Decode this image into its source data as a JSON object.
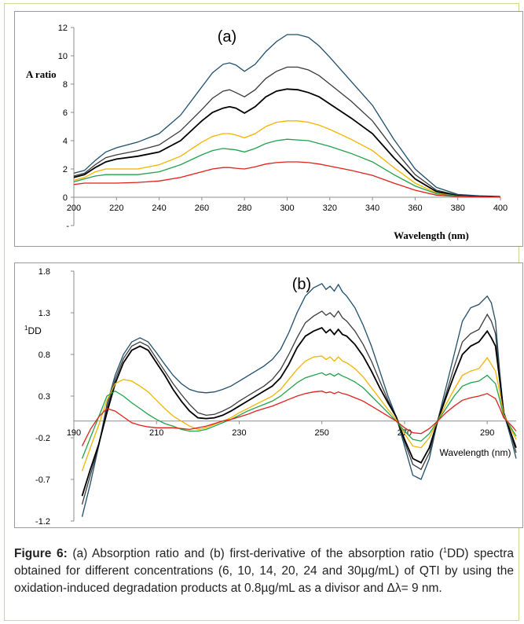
{
  "caption": {
    "label": "Figure 6:",
    "part1": " (a) Absorption ratio and (b) first-derivative of the absorption ratio (",
    "sup": "1",
    "part2": "DD) spectra obtained for different concentrations (6, 10, 14, 20, 24 and 30µg/mL) of QTI by using the oxidation-induced degradation products at 0.8µg/mL as a divisor and Δλ= 9 nm."
  },
  "series_colors": [
    "#1f4e6b",
    "#3b3b3b",
    "#000000",
    "#f2b300",
    "#21a24a",
    "#e0201b"
  ],
  "chart_data": [
    {
      "type": "line",
      "panel_label": "(a)",
      "ylabel": "A ratio",
      "xlabel": "Wavelength (nm)",
      "xlim": [
        200,
        400
      ],
      "ylim": [
        -2,
        12
      ],
      "xticks": [
        200,
        220,
        240,
        260,
        280,
        300,
        320,
        340,
        360,
        380,
        400
      ],
      "yticks": [
        0,
        2,
        4,
        6,
        8,
        10,
        12
      ],
      "ytick_labels": [
        "0",
        "2",
        "4",
        "6",
        "8",
        "10",
        "12"
      ],
      "x": [
        200,
        205,
        210,
        215,
        220,
        230,
        240,
        250,
        260,
        265,
        270,
        273,
        276,
        280,
        285,
        290,
        295,
        300,
        305,
        310,
        315,
        320,
        330,
        340,
        350,
        360,
        370,
        380,
        390,
        400
      ],
      "series": [
        {
          "values": [
            1.7,
            1.9,
            2.6,
            3.2,
            3.5,
            3.9,
            4.5,
            5.8,
            7.8,
            8.8,
            9.4,
            9.5,
            9.35,
            8.9,
            9.4,
            10.3,
            11.0,
            11.5,
            11.5,
            11.3,
            10.7,
            9.9,
            8.2,
            6.5,
            4.1,
            2.0,
            0.7,
            0.2,
            0.1,
            0.05
          ]
        },
        {
          "values": [
            1.5,
            1.7,
            2.3,
            2.8,
            3.0,
            3.3,
            3.7,
            4.7,
            6.2,
            7.0,
            7.5,
            7.6,
            7.4,
            7.1,
            7.6,
            8.4,
            8.9,
            9.2,
            9.2,
            9.0,
            8.6,
            8.0,
            6.8,
            5.4,
            3.4,
            1.6,
            0.5,
            0.15,
            0.05,
            0.02
          ]
        },
        {
          "values": [
            1.4,
            1.6,
            2.1,
            2.5,
            2.7,
            2.9,
            3.2,
            4.0,
            5.4,
            6.0,
            6.3,
            6.4,
            6.3,
            5.95,
            6.4,
            7.1,
            7.5,
            7.65,
            7.6,
            7.4,
            7.1,
            6.6,
            5.6,
            4.5,
            2.8,
            1.3,
            0.4,
            0.1,
            0.05,
            0.02
          ]
        },
        {
          "values": [
            1.2,
            1.4,
            1.8,
            2.0,
            2.0,
            2.0,
            2.3,
            2.9,
            3.9,
            4.3,
            4.5,
            4.5,
            4.4,
            4.2,
            4.5,
            5.0,
            5.3,
            5.4,
            5.4,
            5.3,
            5.1,
            4.8,
            4.1,
            3.3,
            2.1,
            1.0,
            0.3,
            0.08,
            0.03,
            0.01
          ]
        },
        {
          "values": [
            1.1,
            1.3,
            1.5,
            1.6,
            1.6,
            1.6,
            1.8,
            2.3,
            3.0,
            3.3,
            3.45,
            3.4,
            3.35,
            3.2,
            3.45,
            3.8,
            4.0,
            4.1,
            4.05,
            4.0,
            3.8,
            3.6,
            3.1,
            2.5,
            1.6,
            0.8,
            0.25,
            0.07,
            0.03,
            0.01
          ]
        },
        {
          "values": [
            0.9,
            1.0,
            1.0,
            1.0,
            1.0,
            1.05,
            1.15,
            1.4,
            1.8,
            2.0,
            2.1,
            2.1,
            2.05,
            2.0,
            2.15,
            2.35,
            2.45,
            2.5,
            2.5,
            2.45,
            2.35,
            2.2,
            1.9,
            1.55,
            1.0,
            0.5,
            0.15,
            0.05,
            0.02,
            0.01
          ]
        }
      ]
    },
    {
      "type": "line",
      "panel_label": "(b)",
      "ylabel_sup": "1",
      "ylabel": "DD",
      "xlabel": "Wavelength (nm)",
      "xlim": [
        190,
        297
      ],
      "ylim": [
        -1.2,
        1.8
      ],
      "xticks": [
        190,
        210,
        230,
        250,
        270,
        290
      ],
      "yticks": [
        1.8,
        1.3,
        0.8,
        0.3,
        -0.2,
        -0.7,
        -1.2
      ],
      "ytick_labels": [
        "1.8",
        "1.3",
        "0.8",
        "0.3",
        "-0.2",
        "-0.7",
        "-1.2"
      ],
      "x": [
        192,
        194,
        196,
        198,
        200,
        202,
        204,
        206,
        208,
        210,
        212,
        214,
        216,
        218,
        220,
        222,
        224,
        226,
        228,
        230,
        232,
        234,
        236,
        238,
        240,
        242,
        244,
        246,
        248,
        250,
        251,
        252,
        253,
        254,
        255,
        256,
        258,
        260,
        262,
        264,
        266,
        268,
        270,
        272,
        274,
        276,
        278,
        280,
        282,
        284,
        286,
        288,
        290,
        291,
        292,
        293,
        294,
        296,
        297
      ],
      "series": [
        {
          "values": [
            -1.15,
            -0.75,
            -0.3,
            0.2,
            0.55,
            0.8,
            0.95,
            1.0,
            0.95,
            0.82,
            0.68,
            0.55,
            0.45,
            0.38,
            0.35,
            0.34,
            0.35,
            0.38,
            0.42,
            0.48,
            0.54,
            0.6,
            0.66,
            0.74,
            0.86,
            1.06,
            1.3,
            1.5,
            1.6,
            1.65,
            1.58,
            1.62,
            1.56,
            1.64,
            1.55,
            1.5,
            1.36,
            1.15,
            0.9,
            0.6,
            0.3,
            0.05,
            -0.3,
            -0.65,
            -0.7,
            -0.45,
            0.0,
            0.4,
            0.8,
            1.2,
            1.36,
            1.4,
            1.5,
            1.42,
            1.2,
            0.6,
            0.1,
            -0.25,
            -0.45
          ]
        },
        {
          "values": [
            -1.0,
            -0.65,
            -0.3,
            0.15,
            0.5,
            0.75,
            0.9,
            0.95,
            0.9,
            0.75,
            0.6,
            0.45,
            0.32,
            0.2,
            0.1,
            0.07,
            0.08,
            0.12,
            0.17,
            0.24,
            0.3,
            0.36,
            0.42,
            0.5,
            0.62,
            0.8,
            1.0,
            1.18,
            1.26,
            1.32,
            1.27,
            1.3,
            1.25,
            1.32,
            1.24,
            1.2,
            1.08,
            0.92,
            0.72,
            0.48,
            0.25,
            0.05,
            -0.25,
            -0.52,
            -0.58,
            -0.38,
            0.0,
            0.32,
            0.65,
            0.95,
            1.05,
            1.1,
            1.28,
            1.2,
            1.05,
            0.55,
            0.1,
            -0.2,
            -0.38
          ]
        },
        {
          "values": [
            -0.9,
            -0.58,
            -0.28,
            0.1,
            0.45,
            0.7,
            0.85,
            0.9,
            0.85,
            0.7,
            0.55,
            0.38,
            0.24,
            0.12,
            0.04,
            0.03,
            0.04,
            0.07,
            0.12,
            0.18,
            0.24,
            0.3,
            0.36,
            0.42,
            0.52,
            0.68,
            0.88,
            1.02,
            1.08,
            1.12,
            1.06,
            1.1,
            1.04,
            1.1,
            1.04,
            1.02,
            0.92,
            0.78,
            0.6,
            0.4,
            0.22,
            0.05,
            -0.22,
            -0.45,
            -0.5,
            -0.32,
            0.0,
            0.28,
            0.55,
            0.8,
            0.9,
            0.95,
            1.08,
            1.0,
            0.9,
            0.5,
            0.1,
            -0.18,
            -0.32
          ]
        },
        {
          "values": [
            -0.6,
            -0.32,
            -0.05,
            0.25,
            0.45,
            0.5,
            0.48,
            0.42,
            0.35,
            0.25,
            0.15,
            0.06,
            0.0,
            -0.06,
            -0.1,
            -0.08,
            -0.04,
            0.0,
            0.04,
            0.1,
            0.15,
            0.2,
            0.25,
            0.3,
            0.38,
            0.5,
            0.62,
            0.72,
            0.77,
            0.78,
            0.74,
            0.77,
            0.72,
            0.77,
            0.72,
            0.7,
            0.63,
            0.53,
            0.4,
            0.27,
            0.14,
            0.02,
            -0.15,
            -0.3,
            -0.32,
            -0.2,
            0.0,
            0.2,
            0.38,
            0.55,
            0.6,
            0.63,
            0.76,
            0.68,
            0.6,
            0.35,
            0.08,
            -0.12,
            -0.22
          ]
        },
        {
          "values": [
            -0.45,
            -0.2,
            0.05,
            0.3,
            0.36,
            0.3,
            0.22,
            0.15,
            0.08,
            0.02,
            -0.03,
            -0.06,
            -0.1,
            -0.12,
            -0.12,
            -0.1,
            -0.06,
            -0.02,
            0.02,
            0.07,
            0.12,
            0.16,
            0.2,
            0.24,
            0.3,
            0.38,
            0.46,
            0.52,
            0.55,
            0.58,
            0.55,
            0.57,
            0.54,
            0.57,
            0.54,
            0.52,
            0.47,
            0.4,
            0.3,
            0.2,
            0.1,
            0.0,
            -0.12,
            -0.22,
            -0.24,
            -0.15,
            0.0,
            0.15,
            0.3,
            0.42,
            0.46,
            0.48,
            0.55,
            0.5,
            0.45,
            0.26,
            0.06,
            -0.1,
            -0.18
          ]
        },
        {
          "values": [
            -0.3,
            -0.1,
            0.05,
            0.15,
            0.12,
            0.05,
            -0.02,
            -0.05,
            -0.07,
            -0.08,
            -0.08,
            -0.08,
            -0.09,
            -0.1,
            -0.08,
            -0.06,
            -0.03,
            0.0,
            0.02,
            0.05,
            0.08,
            0.12,
            0.15,
            0.18,
            0.22,
            0.26,
            0.3,
            0.33,
            0.35,
            0.36,
            0.34,
            0.35,
            0.33,
            0.35,
            0.33,
            0.32,
            0.28,
            0.24,
            0.18,
            0.12,
            0.06,
            0.0,
            -0.08,
            -0.14,
            -0.15,
            -0.09,
            0.0,
            0.1,
            0.18,
            0.25,
            0.28,
            0.3,
            0.33,
            0.3,
            0.27,
            0.16,
            0.04,
            -0.06,
            -0.12
          ]
        }
      ]
    }
  ]
}
